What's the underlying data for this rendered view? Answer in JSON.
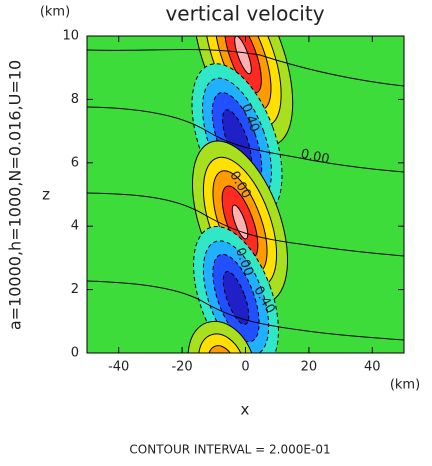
{
  "chart_data": {
    "type": "contour",
    "title": "vertical velocity",
    "parameters": "a=10000,h=1000,N=0.016,U=10",
    "xlabel": "x",
    "ylabel": "z",
    "x_unit": "(km)",
    "y_unit": "(km)",
    "xlim": [
      -50,
      50
    ],
    "ylim": [
      0,
      10
    ],
    "xticks": [
      -40,
      -20,
      0,
      20,
      40
    ],
    "yticks": [
      0,
      2,
      4,
      6,
      8,
      10
    ],
    "contour_labels": [
      "0.00",
      "0.40",
      "0.00",
      "0.00",
      "0.40"
    ],
    "footer": "CONTOUR INTERVAL = 2.000E-01"
  }
}
